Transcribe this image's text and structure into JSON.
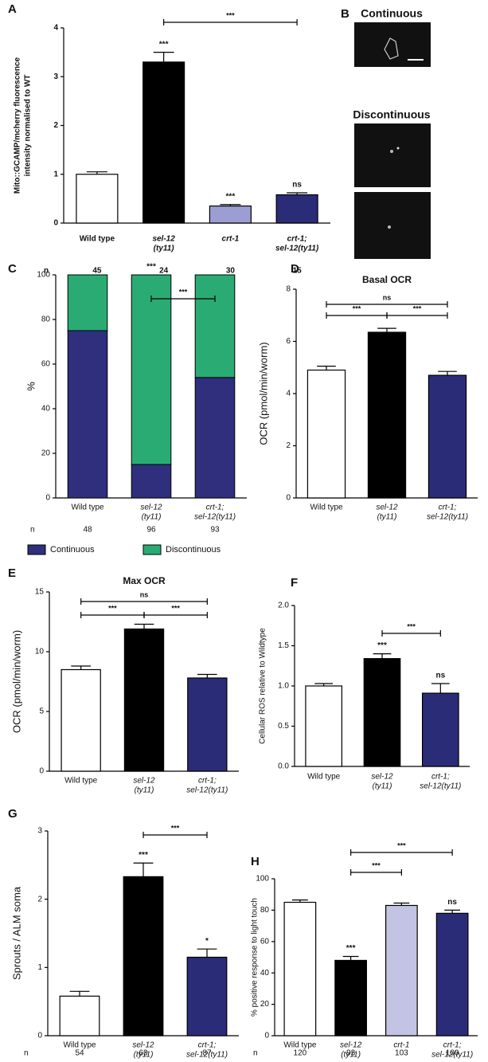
{
  "chart_data": [
    {
      "type": "bar",
      "panel": "A",
      "ylabel": [
        "Mito::GCAMP/mcherry fluorescence",
        "intensity normalised to WT"
      ],
      "categories": [
        [
          "Wild type"
        ],
        [
          "sel-12",
          "(ty11)"
        ],
        [
          "crt-1"
        ],
        [
          "crt-1;",
          "sel-12(ty11)"
        ]
      ],
      "values": [
        1.0,
        3.3,
        0.35,
        0.58
      ],
      "errors": [
        0.05,
        0.2,
        0.03,
        0.04
      ],
      "colors": [
        "#ffffff",
        "#000000",
        "#9c9dd2",
        "#2b2c78"
      ],
      "ylim": [
        0,
        4
      ],
      "yticks": [
        0,
        1,
        2,
        3,
        4
      ],
      "bar_labels": [
        null,
        "***",
        "***",
        "ns"
      ],
      "bracket_labels": [
        "***"
      ],
      "n_label": "n",
      "n": [
        45,
        24,
        30,
        15
      ]
    },
    {
      "type": "stacked_bar",
      "panel": "C",
      "ylabel": "%",
      "categories": [
        [
          "Wild type"
        ],
        [
          "sel-12",
          "(ty11)"
        ],
        [
          "crt-1;",
          "sel-12(ty11)"
        ]
      ],
      "series": [
        {
          "name": "Continuous",
          "color": "#2f2f7e",
          "values": [
            75,
            15,
            54
          ]
        },
        {
          "name": "Discontinuous",
          "color": "#2aab73",
          "values": [
            25,
            85,
            46
          ]
        }
      ],
      "ylim": [
        0,
        100
      ],
      "yticks": [
        0,
        20,
        40,
        60,
        80,
        100
      ],
      "bar_labels": [
        null,
        "***",
        null
      ],
      "bracket_labels": [
        "***"
      ],
      "n_label": "n",
      "n": [
        48,
        96,
        93
      ],
      "legend": "bottom"
    },
    {
      "type": "bar",
      "panel": "D",
      "title": "Basal OCR",
      "ylabel": "OCR (pmol/min/worm)",
      "categories": [
        [
          "Wild type"
        ],
        [
          "sel-12",
          "(ty11)"
        ],
        [
          "crt-1;",
          "sel-12(ty11)"
        ]
      ],
      "values": [
        4.9,
        6.35,
        4.7
      ],
      "errors": [
        0.15,
        0.15,
        0.15
      ],
      "colors": [
        "#ffffff",
        "#000000",
        "#2b2c78"
      ],
      "ylim": [
        0,
        8
      ],
      "yticks": [
        0,
        2,
        4,
        6,
        8
      ],
      "bracket_labels": [
        "***",
        "***",
        "ns"
      ]
    },
    {
      "type": "bar",
      "panel": "E",
      "title": "Max OCR",
      "ylabel": "OCR (pmol/min/worm)",
      "categories": [
        [
          "Wild type"
        ],
        [
          "sel-12",
          "(ty11)"
        ],
        [
          "crt-1;",
          "sel-12(ty11)"
        ]
      ],
      "values": [
        8.5,
        11.9,
        7.8
      ],
      "errors": [
        0.3,
        0.4,
        0.3
      ],
      "colors": [
        "#ffffff",
        "#000000",
        "#2b2c78"
      ],
      "ylim": [
        0,
        15
      ],
      "yticks": [
        0,
        5,
        10,
        15
      ],
      "bracket_labels": [
        "***",
        "***",
        "ns"
      ]
    },
    {
      "type": "bar",
      "panel": "F",
      "ylabel": "Cellular ROS relative to Wildtype",
      "categories": [
        [
          "Wild type"
        ],
        [
          "sel-12",
          "(ty11)"
        ],
        [
          "crt-1;",
          "sel-12(ty11)"
        ]
      ],
      "values": [
        1.0,
        1.34,
        0.91
      ],
      "errors": [
        0.03,
        0.06,
        0.12
      ],
      "colors": [
        "#ffffff",
        "#000000",
        "#2b2c78"
      ],
      "ylim": [
        0,
        2
      ],
      "yticks": [
        {
          "value": 0,
          "label": "0.0"
        },
        0.5,
        {
          "value": 1,
          "label": "1.0"
        },
        1.5,
        {
          "value": 2,
          "label": "2.0"
        }
      ],
      "bar_labels": [
        null,
        "***",
        "ns"
      ],
      "bracket_labels": [
        "***"
      ]
    },
    {
      "type": "bar",
      "panel": "G",
      "ylabel": "Sprouts / ALM soma",
      "categories": [
        [
          "Wild type"
        ],
        [
          "sel-12",
          "(ty11)"
        ],
        [
          "crt-1;",
          "sel-12(ty11)"
        ]
      ],
      "values": [
        0.58,
        2.33,
        1.15
      ],
      "errors": [
        0.07,
        0.2,
        0.12
      ],
      "colors": [
        "#ffffff",
        "#000000",
        "#2b2c78"
      ],
      "ylim": [
        0,
        3
      ],
      "yticks": [
        0,
        1,
        2,
        3
      ],
      "bar_labels": [
        null,
        "***",
        "*"
      ],
      "bracket_labels": [
        "***"
      ],
      "n_label": "n",
      "n": [
        54,
        63,
        87
      ]
    },
    {
      "type": "bar",
      "panel": "H",
      "ylabel": "% positive response to light touch",
      "categories": [
        [
          "Wild type"
        ],
        [
          "sel-12",
          "(ty11)"
        ],
        [
          "crt-1"
        ],
        [
          "crt-1;",
          "sel-12(ty11)"
        ]
      ],
      "values": [
        85,
        48,
        83,
        78
      ],
      "errors": [
        1.5,
        2.5,
        1.5,
        2
      ],
      "colors": [
        "#ffffff",
        "#000000",
        "#c3c3e4",
        "#2b2c78"
      ],
      "ylim": [
        0,
        100
      ],
      "yticks": [
        0,
        20,
        40,
        60,
        80,
        100
      ],
      "bar_labels": [
        null,
        "***",
        null,
        "ns"
      ],
      "bracket_labels": [
        "***",
        "***"
      ],
      "n_label": "n",
      "n": [
        120,
        93,
        103,
        100
      ]
    }
  ],
  "panel_b": {
    "label": "B",
    "titles": [
      "Continuous",
      "Discontinuous"
    ]
  }
}
